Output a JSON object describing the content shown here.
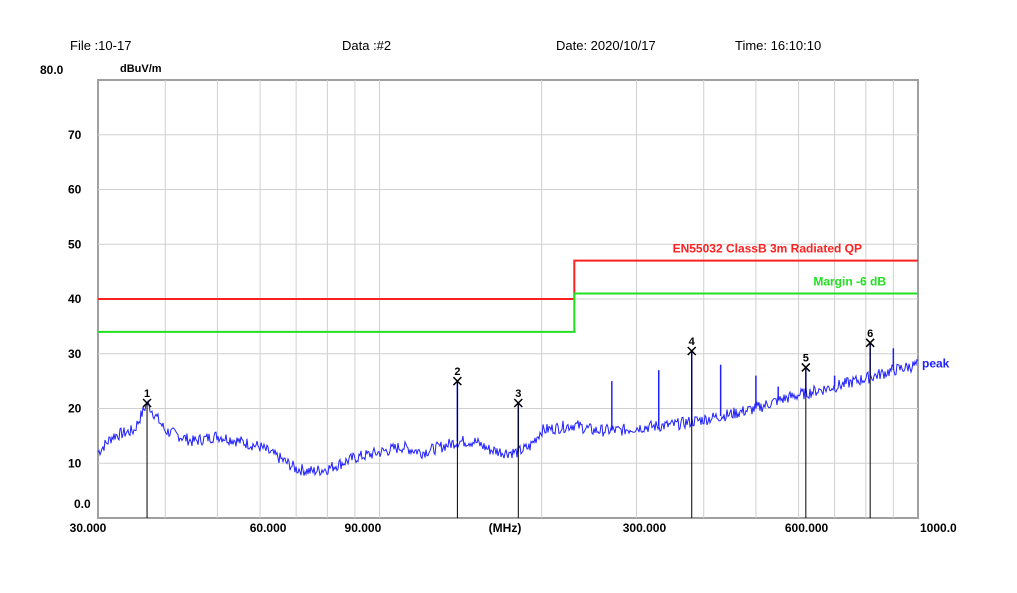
{
  "header": {
    "file": "File :10-17",
    "data": "Data :#2",
    "date": "Date: 2020/10/17",
    "time": "Time: 16:10:10"
  },
  "chart_data": {
    "type": "line",
    "ylabel": "dBuV/m",
    "xlabel": "(MHz)",
    "x_scale": "log",
    "xlim": [
      30,
      1000
    ],
    "ylim": [
      0,
      80
    ],
    "grid": true,
    "y_ticks": [
      "0.0",
      "10",
      "20",
      "30",
      "40",
      "50",
      "60",
      "70",
      "80.0"
    ],
    "y_tick_values": [
      0,
      10,
      20,
      30,
      40,
      50,
      60,
      70,
      80
    ],
    "x_ticks": [
      {
        "label": "30.000",
        "value": 30
      },
      {
        "label": "60.000",
        "value": 60
      },
      {
        "label": "90.000",
        "value": 90
      },
      {
        "label": "300.000",
        "value": 300
      },
      {
        "label": "600.000",
        "value": 600
      },
      {
        "label": "1000.0",
        "value": 1000
      }
    ],
    "x_grid": [
      40,
      50,
      60,
      70,
      80,
      90,
      100,
      200,
      300,
      400,
      500,
      600,
      700,
      800,
      900
    ],
    "limits": [
      {
        "name": "EN55032 ClassB 3m Radiated QP",
        "color": "#ff2020",
        "points": [
          [
            30,
            40
          ],
          [
            230,
            40
          ],
          [
            230,
            47
          ],
          [
            1000,
            47
          ]
        ]
      },
      {
        "name": "Margin -6 dB",
        "color": "#20e020",
        "points": [
          [
            30,
            34
          ],
          [
            230,
            34
          ],
          [
            230,
            41
          ],
          [
            1000,
            41
          ]
        ]
      }
    ],
    "series": [
      {
        "name": "peak",
        "color": "#2020ff",
        "points": [
          [
            30,
            12
          ],
          [
            32,
            15
          ],
          [
            35,
            16
          ],
          [
            37,
            21
          ],
          [
            40,
            16
          ],
          [
            45,
            14
          ],
          [
            50,
            15
          ],
          [
            55,
            14
          ],
          [
            60,
            13
          ],
          [
            65,
            11
          ],
          [
            70,
            9
          ],
          [
            75,
            8.5
          ],
          [
            80,
            9
          ],
          [
            90,
            11
          ],
          [
            100,
            12
          ],
          [
            110,
            13
          ],
          [
            120,
            12
          ],
          [
            130,
            13
          ],
          [
            140,
            14
          ],
          [
            150,
            14
          ],
          [
            160,
            12.5
          ],
          [
            170,
            12
          ],
          [
            180,
            12
          ],
          [
            190,
            13
          ],
          [
            200,
            16
          ],
          [
            230,
            17
          ],
          [
            250,
            16
          ],
          [
            280,
            16
          ],
          [
            300,
            16.5
          ],
          [
            350,
            17
          ],
          [
            400,
            18
          ],
          [
            450,
            19
          ],
          [
            500,
            20
          ],
          [
            550,
            21.5
          ],
          [
            600,
            22.5
          ],
          [
            700,
            24
          ],
          [
            800,
            25.5
          ],
          [
            900,
            27
          ],
          [
            1000,
            28
          ]
        ],
        "spikes": [
          [
            139.5,
            25
          ],
          [
            181,
            21
          ],
          [
            270,
            25
          ],
          [
            330,
            27
          ],
          [
            380,
            30.5
          ],
          [
            430,
            28
          ],
          [
            500,
            26
          ],
          [
            550,
            24
          ],
          [
            619,
            27.5
          ],
          [
            700,
            26
          ],
          [
            815,
            32
          ],
          [
            900,
            31
          ]
        ]
      }
    ],
    "markers": [
      {
        "label": "1",
        "freq": 37,
        "level": 21
      },
      {
        "label": "2",
        "freq": 139.5,
        "level": 25
      },
      {
        "label": "3",
        "freq": 181,
        "level": 21
      },
      {
        "label": "4",
        "freq": 380,
        "level": 30.5
      },
      {
        "label": "5",
        "freq": 619,
        "level": 27.5
      },
      {
        "label": "6",
        "freq": 815,
        "level": 32
      }
    ]
  }
}
